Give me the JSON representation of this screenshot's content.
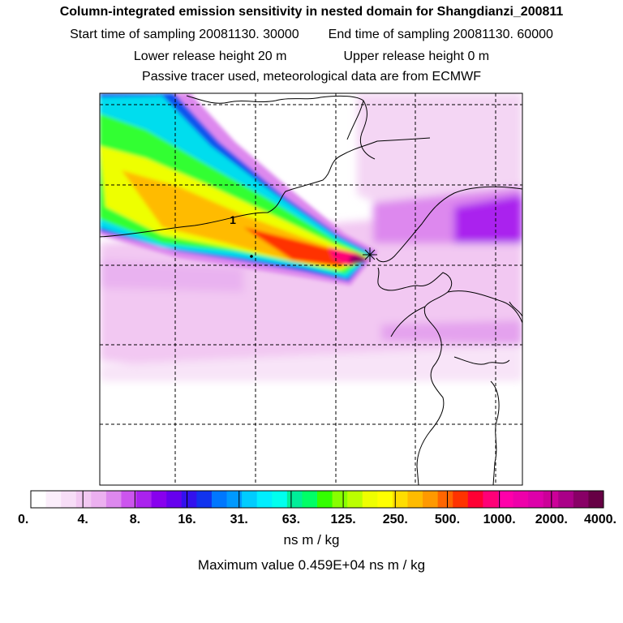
{
  "header": {
    "title": "Column-integrated emission sensitivity in nested domain for Shangdianzi_200811",
    "start_label": "Start time of sampling 20081130. 30000",
    "end_label": "End time of sampling 20081130. 60000",
    "lower_label": "Lower release height   20 m",
    "upper_label": "Upper release height    0 m",
    "info": "Passive tracer used, meteorological data are from ECMWF"
  },
  "map": {
    "contour_label": "1"
  },
  "colorbar": {
    "colors": [
      "#ffffff",
      "#fbeefb",
      "#f7ddf7",
      "#f2c8f2",
      "#ecb0f0",
      "#dd88ee",
      "#cc55ee",
      "#aa22ee",
      "#8800ee",
      "#6600ee",
      "#3311ee",
      "#1133ee",
      "#0077ff",
      "#0099ff",
      "#00ccff",
      "#00eeff",
      "#00ffee",
      "#00ee99",
      "#00ff66",
      "#33ff00",
      "#88ff00",
      "#bbff00",
      "#eeff00",
      "#ffff00",
      "#ffdd00",
      "#ffbb00",
      "#ff9900",
      "#ff6600",
      "#ff3300",
      "#ff0033",
      "#ff0077",
      "#ff00aa",
      "#ee00aa",
      "#dd00aa",
      "#cc0099",
      "#aa0088",
      "#880066",
      "#660044"
    ],
    "tick_labels": [
      "0.",
      "4.",
      "8.",
      "16.",
      "31.",
      "63.",
      "125.",
      "250.",
      "500.",
      "1000.",
      "2000.",
      "4000."
    ],
    "unit": "ns m / kg",
    "max_value_text": "Maximum value  0.459E+04 ns m / kg"
  },
  "chart_data": {
    "type": "heatmap",
    "title": "Column-integrated emission sensitivity in nested domain for Shangdianzi_200811",
    "variable": "Column-integrated emission sensitivity",
    "units": "ns m / kg",
    "color_scale_levels": [
      0,
      4,
      8,
      16,
      31,
      63,
      125,
      250,
      500,
      1000,
      2000,
      4000
    ],
    "maximum_value": 4590,
    "release_site": "Shangdianzi",
    "sampling_start": "20081130. 30000",
    "sampling_end": "20081130. 60000",
    "release_height_lower_m": 20,
    "release_height_upper_m": 0,
    "plume_description": "narrow high-sensitivity plume extending from the receptor toward the northwest edge of the domain, with broad low values (4-16) over the rest of the domain"
  }
}
